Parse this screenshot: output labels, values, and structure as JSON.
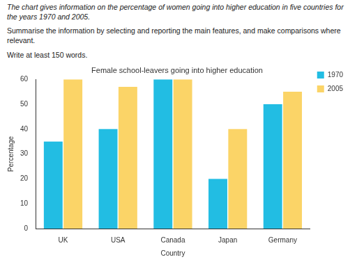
{
  "instructions": [
    "The chart gives information on the percentage of women going into higher education in five countries for the years 1970 and 2005.",
    "Summarise the information by selecting and reporting the main features, and make comparisons where relevant.",
    "Write at least 150 words."
  ],
  "chart_data": {
    "type": "bar",
    "title": "Female school-leavers going into higher education",
    "x_label": "Country",
    "y_label": "Percentage",
    "categories": [
      "UK",
      "USA",
      "Canada",
      "Japan",
      "Germany"
    ],
    "series": [
      {
        "name": "1970",
        "color": "#22bde3",
        "values": [
          35,
          40,
          60,
          20,
          50
        ]
      },
      {
        "name": "2005",
        "color": "#fbd467",
        "values": [
          60,
          57,
          60,
          40,
          55
        ]
      }
    ],
    "ylim": [
      0,
      60
    ],
    "yticks": [
      0,
      10,
      20,
      30,
      40,
      50,
      60
    ],
    "grid": false,
    "legend": "top-right"
  }
}
